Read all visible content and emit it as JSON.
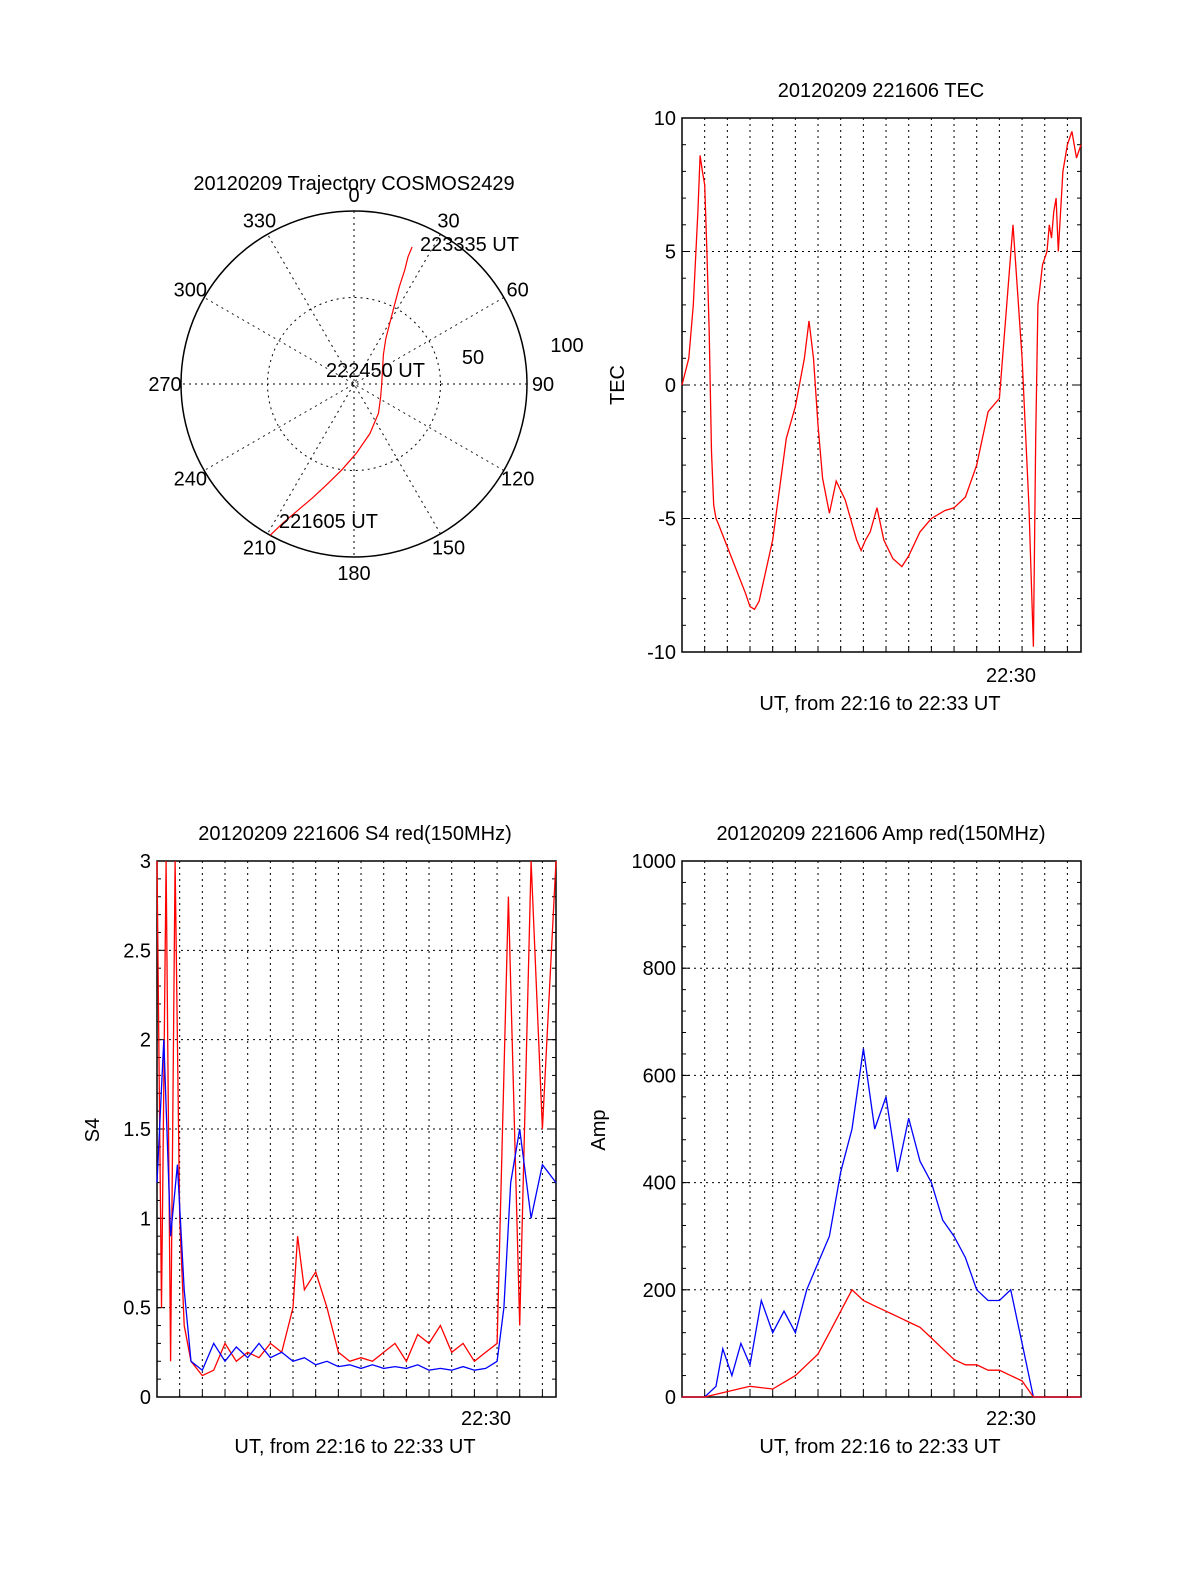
{
  "chart_data": [
    {
      "type": "polar",
      "title": "20120209 Trajectory COSMOS2429",
      "angle_labels": [
        "0",
        "30",
        "60",
        "90",
        "120",
        "150",
        "180",
        "210",
        "240",
        "270",
        "300",
        "330"
      ],
      "radial_labels": [
        "50",
        "100"
      ],
      "trajectory": [
        [
          209,
          100
        ],
        [
          207,
          90
        ],
        [
          204,
          80
        ],
        [
          200,
          70
        ],
        [
          195,
          60
        ],
        [
          188,
          50
        ],
        [
          178,
          40
        ],
        [
          162,
          30
        ],
        [
          140,
          22
        ],
        [
          115,
          17
        ],
        [
          90,
          16
        ],
        [
          66,
          18
        ],
        [
          45,
          24
        ],
        [
          35,
          32
        ],
        [
          30,
          42
        ],
        [
          27,
          52
        ],
        [
          25,
          62
        ],
        [
          24,
          72
        ],
        [
          23,
          80
        ],
        [
          23,
          86
        ]
      ],
      "annotations": [
        "223335 UT",
        "222450 UT",
        "221605 UT"
      ],
      "color": "#ff0000"
    },
    {
      "type": "line",
      "title": "20120209 221606 TEC",
      "ylabel": "TEC",
      "xlabel": "UT, from 22:16 to 22:33 UT",
      "xtick_label": "22:30",
      "ylim": [
        -10,
        10
      ],
      "yticks": [
        "10",
        "5",
        "0",
        "-5",
        "-10"
      ],
      "xlim_min": [
        0,
        17.6
      ],
      "series": [
        {
          "color": "#ff0000",
          "x": [
            0,
            0.3,
            0.5,
            0.7,
            0.8,
            0.9,
            1.0,
            1.1,
            1.2,
            1.3,
            1.4,
            1.5,
            1.6,
            2.2,
            2.8,
            3.0,
            3.2,
            3.4,
            4.0,
            4.6,
            5.0,
            5.4,
            5.6,
            5.8,
            6.0,
            6.2,
            6.5,
            6.8,
            7.2,
            7.5,
            7.7,
            7.9,
            8.1,
            8.3,
            8.6,
            8.9,
            9.3,
            9.7,
            10.0,
            10.5,
            11.0,
            11.6,
            12.0,
            12.5,
            13.0,
            13.5,
            14.0,
            14.6,
            15.0,
            15.3,
            15.5,
            15.6,
            15.7,
            15.9,
            16.1,
            16.2,
            16.3,
            16.4,
            16.5,
            16.6,
            16.8,
            17.0,
            17.2,
            17.4,
            17.6
          ],
          "y": [
            0,
            1.0,
            3.0,
            6.5,
            8.6,
            8.0,
            7.5,
            5.0,
            2.0,
            -2.5,
            -4.5,
            -5.0,
            -5.2,
            -6.5,
            -7.8,
            -8.3,
            -8.4,
            -8.1,
            -5.8,
            -2.0,
            -0.8,
            1.0,
            2.4,
            1.0,
            -1.5,
            -3.5,
            -4.8,
            -3.6,
            -4.3,
            -5.2,
            -5.8,
            -6.2,
            -5.8,
            -5.5,
            -4.6,
            -5.8,
            -6.5,
            -6.8,
            -6.4,
            -5.5,
            -5.0,
            -4.7,
            -4.6,
            -4.2,
            -3.0,
            -1.0,
            -0.5,
            6.0,
            1.0,
            -4.5,
            -9.8,
            -2.0,
            3.0,
            4.5,
            5.0,
            6.0,
            5.5,
            6.5,
            7.0,
            5.0,
            8.0,
            9.0,
            9.5,
            8.5,
            9.0
          ]
        }
      ]
    },
    {
      "type": "line",
      "title": "20120209 221606 S4 red(150MHz)",
      "ylabel": "S4",
      "xlabel": "UT, from 22:16 to 22:33 UT",
      "xtick_label": "22:30",
      "ylim": [
        0,
        3
      ],
      "yticks": [
        "3",
        "2.5",
        "2",
        "1.5",
        "1",
        "0.5",
        "0"
      ],
      "series": [
        {
          "color": "#ff0000",
          "x": [
            0,
            0.2,
            0.4,
            0.6,
            0.8,
            1.0,
            1.2,
            1.5,
            2.0,
            2.5,
            3.0,
            3.5,
            4.0,
            4.5,
            5.0,
            5.5,
            6.0,
            6.2,
            6.5,
            7.0,
            7.5,
            8.0,
            8.5,
            9.0,
            9.5,
            10.0,
            10.5,
            11.0,
            11.5,
            12.0,
            12.5,
            13.0,
            13.5,
            14.0,
            14.5,
            15.0,
            15.5,
            16.0,
            16.5,
            17.0,
            17.6
          ],
          "y": [
            3.0,
            0.5,
            3.0,
            0.2,
            3.0,
            1.0,
            0.4,
            0.2,
            0.12,
            0.15,
            0.3,
            0.2,
            0.25,
            0.22,
            0.3,
            0.25,
            0.5,
            0.9,
            0.6,
            0.7,
            0.5,
            0.25,
            0.2,
            0.22,
            0.2,
            0.25,
            0.3,
            0.2,
            0.35,
            0.3,
            0.4,
            0.25,
            0.3,
            0.2,
            0.25,
            0.3,
            2.8,
            0.4,
            3.0,
            1.5,
            3.0
          ]
        },
        {
          "color": "#0000ff",
          "x": [
            0,
            0.3,
            0.6,
            0.9,
            1.2,
            1.5,
            2.0,
            2.5,
            3.0,
            3.5,
            4.0,
            4.5,
            5.0,
            5.5,
            6.0,
            6.5,
            7.0,
            7.5,
            8.0,
            8.5,
            9.0,
            9.5,
            10.0,
            10.5,
            11.0,
            11.5,
            12.0,
            12.5,
            13.0,
            13.5,
            14.0,
            14.5,
            15.0,
            15.3,
            15.6,
            16.0,
            16.5,
            17.0,
            17.6
          ],
          "y": [
            1.2,
            2.0,
            0.9,
            1.3,
            0.6,
            0.2,
            0.15,
            0.3,
            0.2,
            0.28,
            0.22,
            0.3,
            0.22,
            0.25,
            0.2,
            0.22,
            0.18,
            0.2,
            0.17,
            0.18,
            0.16,
            0.18,
            0.16,
            0.17,
            0.16,
            0.18,
            0.15,
            0.16,
            0.15,
            0.17,
            0.15,
            0.16,
            0.2,
            0.5,
            1.2,
            1.5,
            1.0,
            1.3,
            1.2
          ]
        }
      ]
    },
    {
      "type": "line",
      "title": "20120209 221606 Amp red(150MHz)",
      "ylabel": "Amp",
      "xlabel": "UT, from 22:16 to 22:33 UT",
      "xtick_label": "22:30",
      "ylim": [
        0,
        1000
      ],
      "yticks": [
        "1000",
        "800",
        "600",
        "400",
        "200",
        "0"
      ],
      "series": [
        {
          "color": "#0000ff",
          "x": [
            0,
            1.0,
            1.5,
            1.8,
            2.2,
            2.6,
            3.0,
            3.5,
            4.0,
            4.5,
            5.0,
            5.5,
            6.0,
            6.5,
            7.0,
            7.5,
            8.0,
            8.5,
            9.0,
            9.5,
            10.0,
            10.5,
            11.0,
            11.5,
            12.0,
            12.5,
            13.0,
            13.5,
            14.0,
            14.5,
            15.0,
            15.5,
            16.0,
            17.6
          ],
          "y": [
            0,
            0,
            20,
            90,
            40,
            100,
            60,
            180,
            120,
            160,
            120,
            200,
            250,
            300,
            420,
            500,
            650,
            500,
            560,
            420,
            520,
            440,
            400,
            330,
            300,
            260,
            200,
            180,
            180,
            200,
            100,
            0,
            0,
            0
          ]
        },
        {
          "color": "#ff0000",
          "x": [
            0,
            1.0,
            2.0,
            3.0,
            4.0,
            5.0,
            5.5,
            6.0,
            6.5,
            7.0,
            7.5,
            8.0,
            8.5,
            9.0,
            9.5,
            10.0,
            10.5,
            11.0,
            11.5,
            12.0,
            12.5,
            13.0,
            13.5,
            14.0,
            14.5,
            15.0,
            15.5,
            17.6
          ],
          "y": [
            0,
            0,
            10,
            20,
            15,
            40,
            60,
            80,
            120,
            160,
            200,
            180,
            170,
            160,
            150,
            140,
            130,
            110,
            90,
            70,
            60,
            60,
            50,
            50,
            40,
            30,
            0,
            0
          ]
        }
      ]
    }
  ]
}
